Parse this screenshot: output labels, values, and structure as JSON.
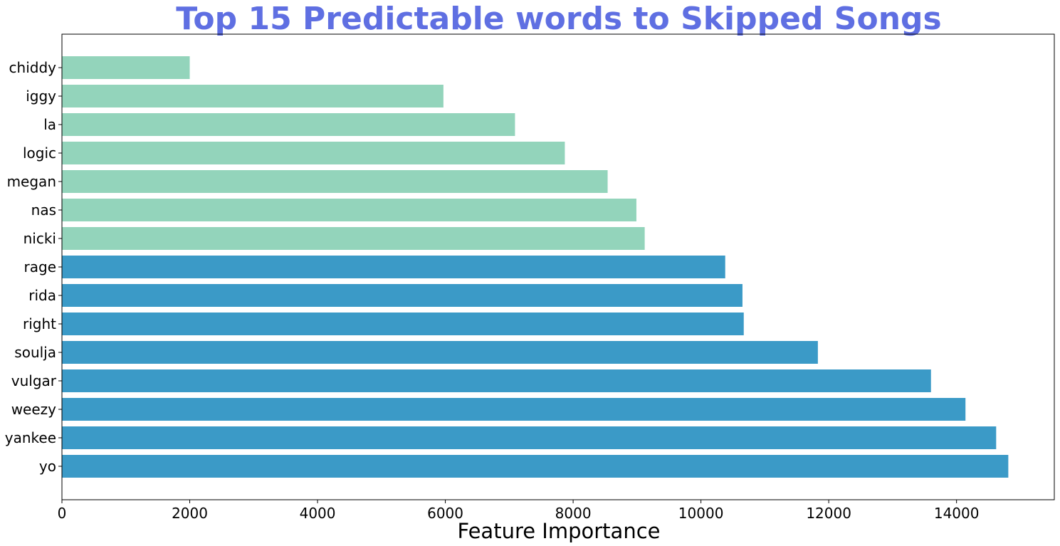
{
  "chart_data": {
    "type": "bar",
    "orientation": "horizontal",
    "title": "Top 15 Predictable words to Skipped Songs",
    "xlabel": "Feature Importance",
    "ylabel": "",
    "xlim": [
      0,
      15530
    ],
    "xticks": [
      0,
      2000,
      4000,
      6000,
      8000,
      10000,
      12000,
      14000
    ],
    "grid": false,
    "categories": [
      "chiddy",
      "iggy",
      "la",
      "logic",
      "megan",
      "nas",
      "nicki",
      "rage",
      "rida",
      "right",
      "soulja",
      "vulgar",
      "weezy",
      "yankee",
      "yo"
    ],
    "values": [
      2000,
      5970,
      7090,
      7870,
      8540,
      8990,
      9120,
      10380,
      10650,
      10670,
      11830,
      13600,
      14140,
      14620,
      14810
    ],
    "bar_colors": [
      "#93d4bb",
      "#93d4bb",
      "#93d4bb",
      "#93d4bb",
      "#93d4bb",
      "#93d4bb",
      "#93d4bb",
      "#3b9ac7",
      "#3b9ac7",
      "#3b9ac7",
      "#3b9ac7",
      "#3b9ac7",
      "#3b9ac7",
      "#3b9ac7",
      "#3b9ac7"
    ],
    "title_color": "#5f6fe2"
  }
}
